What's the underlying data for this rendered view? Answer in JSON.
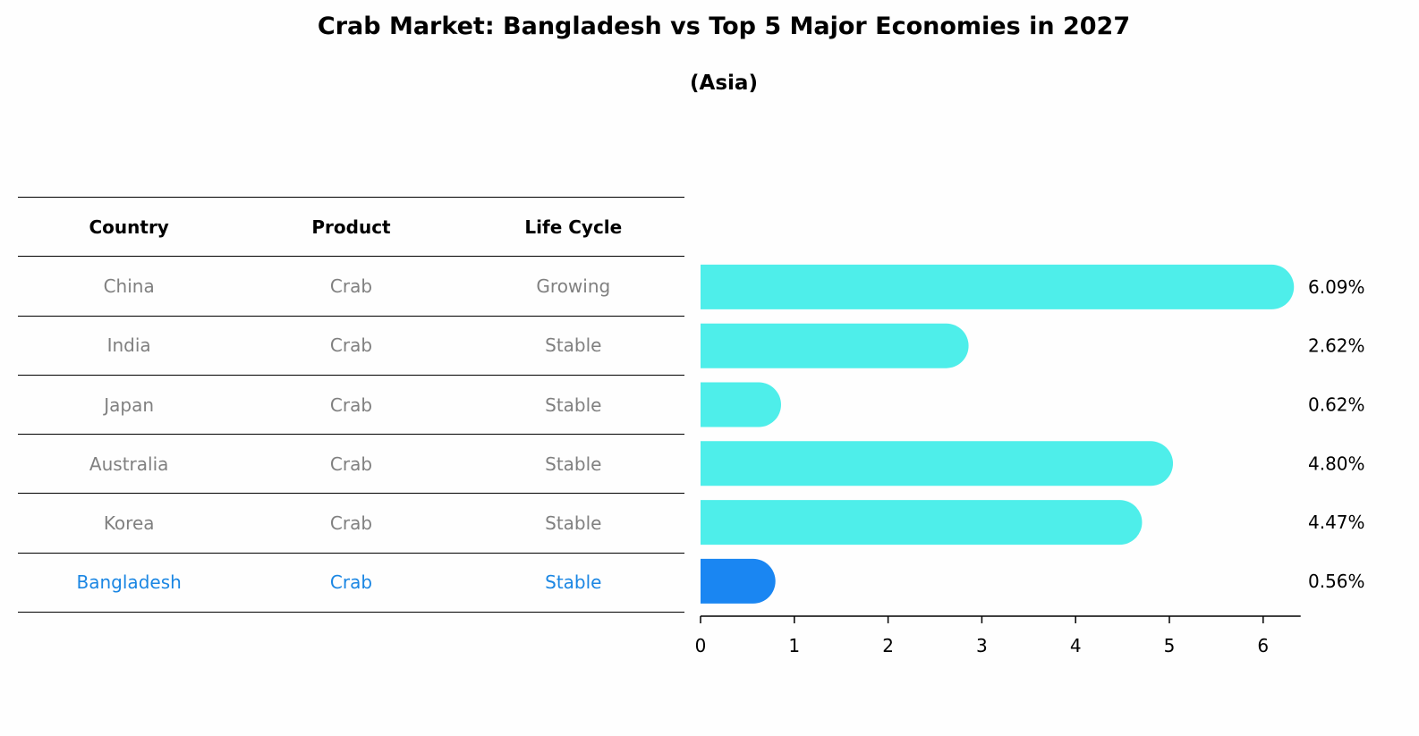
{
  "title": "Crab Market: Bangladesh vs Top 5 Major Economies in 2027",
  "subtitle": "(Asia)",
  "table": {
    "headers": [
      "Country",
      "Product",
      "Life Cycle"
    ],
    "rows": [
      {
        "country": "China",
        "product": "Crab",
        "life_cycle": "Growing"
      },
      {
        "country": "India",
        "product": "Crab",
        "life_cycle": "Stable"
      },
      {
        "country": "Japan",
        "product": "Crab",
        "life_cycle": "Stable"
      },
      {
        "country": "Australia",
        "product": "Crab",
        "life_cycle": "Stable"
      },
      {
        "country": "Korea",
        "product": "Crab",
        "life_cycle": "Stable"
      },
      {
        "country": "Bangladesh",
        "product": "Crab",
        "life_cycle": "Stable"
      }
    ]
  },
  "chart_data": {
    "type": "bar",
    "orientation": "horizontal",
    "categories": [
      "China",
      "India",
      "Japan",
      "Australia",
      "Korea",
      "Bangladesh"
    ],
    "values": [
      6.09,
      2.62,
      0.62,
      4.8,
      4.47,
      0.56
    ],
    "value_labels": [
      "6.09%",
      "2.62%",
      "0.62%",
      "4.80%",
      "4.47%",
      "0.56%"
    ],
    "xticks": [
      "0",
      "1",
      "2",
      "3",
      "4",
      "5",
      "6"
    ],
    "xlim": [
      0,
      6.4
    ],
    "highlight_category": "Bangladesh",
    "colors": {
      "bar": "#4eeeea",
      "highlight_bar": "#1a86f2",
      "highlight_text": "#1a86e3",
      "muted_text": "#808080"
    }
  }
}
